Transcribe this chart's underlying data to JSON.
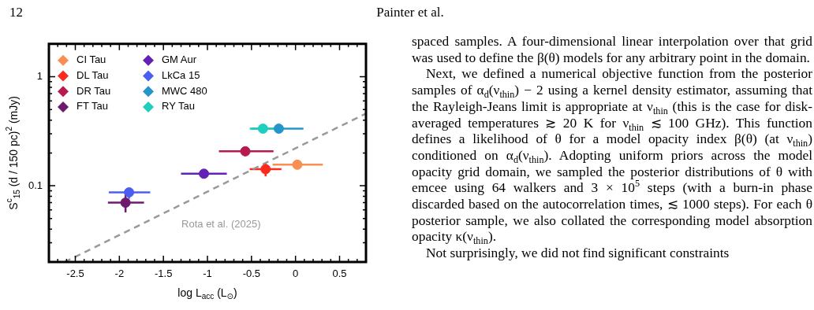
{
  "chart_data": {
    "type": "scatter",
    "xlabel": "log L$_{acc}$ (L$_{⊙}$)",
    "ylabel": "S$^{c}$$_{15}$ (d / 150 pc)$^{2}$ (mJy)",
    "log": "y",
    "legend": "top left",
    "xlim": [
      -2.8,
      0.8
    ],
    "ylim": [
      0.02,
      2
    ],
    "xticks": [
      {
        "value": -2.7,
        "label": null
      },
      {
        "value": -2.6,
        "label": null
      },
      -2.5,
      {
        "value": -2.4,
        "label": null
      },
      {
        "value": -2.3,
        "label": null
      },
      {
        "value": -2.2,
        "label": null
      },
      {
        "value": -2.1,
        "label": null
      },
      -2.0,
      {
        "value": -1.9,
        "label": null
      },
      {
        "value": -1.8,
        "label": null
      },
      {
        "value": -1.7,
        "label": null
      },
      {
        "value": -1.6,
        "label": null
      },
      -1.5,
      {
        "value": -1.4,
        "label": null
      },
      {
        "value": -1.3,
        "label": null
      },
      {
        "value": -1.2,
        "label": null
      },
      {
        "value": -1.1,
        "label": null
      },
      -1.0,
      {
        "value": -0.9,
        "label": null
      },
      {
        "value": -0.8,
        "label": null
      },
      {
        "value": -0.7,
        "label": null
      },
      {
        "value": -0.6,
        "label": null
      },
      -0.5,
      {
        "value": -0.4,
        "label": null
      },
      {
        "value": -0.3,
        "label": null
      },
      {
        "value": -0.2,
        "label": null
      },
      {
        "value": -0.1,
        "label": null
      },
      0.0,
      {
        "value": 0.1,
        "label": null
      },
      {
        "value": 0.2,
        "label": null
      },
      {
        "value": 0.3,
        "label": null
      },
      {
        "value": 0.4,
        "label": null
      },
      0.5,
      {
        "value": 0.6,
        "label": null
      },
      {
        "value": 0.7,
        "label": null
      }
    ],
    "yticks": [
      {
        "value": 0.02,
        "label": null
      },
      {
        "value": 0.03,
        "label": null
      },
      {
        "value": 0.04,
        "label": null
      },
      {
        "value": 0.05,
        "label": null
      },
      {
        "value": 0.06,
        "label": null
      },
      {
        "value": 0.07,
        "label": null
      },
      {
        "value": 0.08,
        "label": null
      },
      {
        "value": 0.09,
        "label": null
      },
      0.1,
      {
        "value": 0.2,
        "label": null
      },
      {
        "value": 0.3,
        "label": null
      },
      {
        "value": 0.4,
        "label": null
      },
      {
        "value": 0.5,
        "label": null
      },
      {
        "value": 0.6,
        "label": null
      },
      {
        "value": 0.7,
        "label": null
      },
      {
        "value": 0.8,
        "label": null
      },
      {
        "value": 0.9,
        "label": null
      },
      1,
      {
        "value": 2,
        "label": null
      }
    ],
    "series": [
      {
        "name": "CI Tau",
        "color": "#f98e52",
        "x": [
          0.02
        ],
        "values": [
          0.156
        ],
        "xerrors": [
          [
            -0.26,
            0.31
          ]
        ],
        "marker": "circle"
      },
      {
        "name": "DL Tau",
        "color": "#fc2a1c",
        "x": [
          -0.34
        ],
        "values": [
          0.142
        ],
        "xerrors": [
          [
            -0.52,
            -0.16
          ]
        ],
        "errors": [
          [
            0.122,
            0.16
          ]
        ],
        "marker": "circle"
      },
      {
        "name": "DR Tau",
        "color": "#b8194f",
        "x": [
          -0.57
        ],
        "values": [
          0.207
        ],
        "xerrors": [
          [
            -0.87,
            -0.25
          ]
        ],
        "marker": "circle"
      },
      {
        "name": "FT Tau",
        "color": "#6e1a6e",
        "x": [
          -1.93
        ],
        "values": [
          0.07
        ],
        "xerrors": [
          [
            -2.13,
            -1.72
          ]
        ],
        "errors": [
          [
            0.057,
            0.085
          ]
        ],
        "marker": "circle"
      },
      {
        "name": "GM Aur",
        "color": "#6322b5",
        "x": [
          -1.04
        ],
        "values": [
          0.129
        ],
        "xerrors": [
          [
            -1.3,
            -0.78
          ]
        ],
        "marker": "circle"
      },
      {
        "name": "LkCa 15",
        "color": "#4a5ff0",
        "x": [
          -1.89
        ],
        "values": [
          0.087
        ],
        "xerrors": [
          [
            -2.12,
            -1.65
          ]
        ],
        "errors": [
          [
            0.076,
            0.095
          ]
        ],
        "marker": "circle"
      },
      {
        "name": "MWC 480",
        "color": "#2496cc",
        "x": [
          -0.19
        ],
        "values": [
          0.334
        ],
        "xerrors": [
          [
            -0.5,
            0.09
          ]
        ],
        "marker": "circle"
      },
      {
        "name": "RY Tau",
        "color": "#1fcfbe",
        "x": [
          -0.37
        ],
        "values": [
          0.334
        ],
        "xerrors": [
          [
            -0.52,
            -0.22
          ]
        ],
        "marker": "circle"
      },
      {
        "type": "line",
        "color": "#999999",
        "line_style": "dashed",
        "marker": "none",
        "x": [
          -2.62,
          0.8
        ],
        "values": [
          0.02,
          0.46
        ]
      }
    ],
    "annotations": [
      "12",
      "Painter et al.",
      "Rota et al. (2025)",
      "spaced samples. A four-dimensional linear interpolation over that grid was used to define the β(θ) models for any arbitrary point in the domain.",
      "Next, we defined a numerical objective function from the posterior samples of α$_{d}$(ν$_{thin}$) − 2 using a kernel density estimator, assuming that the Rayleigh-Jeans limit is appropriate at ν$_{thin}$ (this is the case for disk-averaged temperatures ≳ 20 K for ν$_{thin}$ ≲ 100 GHz). This function defines a likelihood of θ for a model opacity index β(θ) (at ν$_{thin}$) conditioned on α$_{d}$(ν$_{thin}$). Adopting uniform priors across the model opacity grid domain, we sampled the posterior distributions of θ with emcee using 64 walkers and 3 × 10$^{5}$ steps (with a burn-in phase discarded based on the autocorrelation times, ≲ 1000 steps). For each θ posterior sample, we also collated the corresponding model absorption opacity κ(ν$_{thin}$).",
      "Not surprisingly, we did not find significant constraints"
    ]
  }
}
